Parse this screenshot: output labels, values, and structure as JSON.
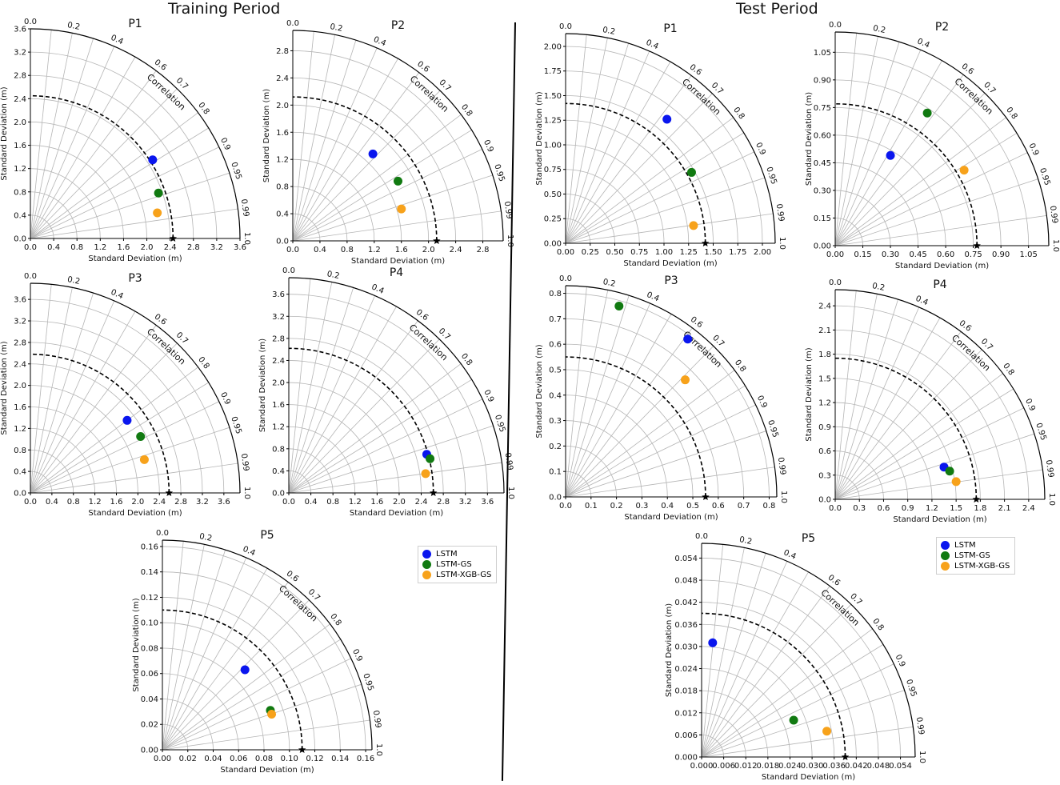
{
  "titles": {
    "training": "Training Period",
    "test": "Test Period"
  },
  "axis_label": "Standard Deviation (m)",
  "correlation_label": "Correlation",
  "correlation_ticks": [
    "0.0",
    "0.2",
    "0.4",
    "0.6",
    "0.7",
    "0.8",
    "0.9",
    "0.95",
    "0.99",
    "1.0"
  ],
  "legend": {
    "items": [
      {
        "label": "LSTM",
        "color": "#0a16ee"
      },
      {
        "label": "LSTM-GS",
        "color": "#117a11"
      },
      {
        "label": "LSTM-XGB-GS",
        "color": "#f7a21b"
      }
    ]
  },
  "chart_data": [
    {
      "type": "taylor",
      "period": "Training Period",
      "title": "P1",
      "ticks": [
        "0.0",
        "0.4",
        "0.8",
        "1.2",
        "1.6",
        "2.0",
        "2.4",
        "2.8",
        "3.2",
        "3.6"
      ],
      "max": 3.6,
      "ref": 2.45,
      "points": [
        {
          "model": "LSTM",
          "x": 2.1,
          "y": 1.35
        },
        {
          "model": "LSTM-GS",
          "x": 2.2,
          "y": 0.78
        },
        {
          "model": "LSTM-XGB-GS",
          "x": 2.18,
          "y": 0.44
        }
      ]
    },
    {
      "type": "taylor",
      "period": "Training Period",
      "title": "P2",
      "ticks": [
        "0.0",
        "0.4",
        "0.8",
        "1.2",
        "1.6",
        "2.0",
        "2.4",
        "2.8"
      ],
      "max": 3.1,
      "ref": 2.12,
      "points": [
        {
          "model": "LSTM",
          "x": 1.18,
          "y": 1.28
        },
        {
          "model": "LSTM-GS",
          "x": 1.55,
          "y": 0.88
        },
        {
          "model": "LSTM-XGB-GS",
          "x": 1.6,
          "y": 0.47
        }
      ]
    },
    {
      "type": "taylor",
      "period": "Training Period",
      "title": "P3",
      "ticks": [
        "0.0",
        "0.4",
        "0.8",
        "1.2",
        "1.6",
        "2.0",
        "2.4",
        "2.8",
        "3.2",
        "3.6"
      ],
      "max": 3.9,
      "ref": 2.58,
      "points": [
        {
          "model": "LSTM",
          "x": 1.8,
          "y": 1.35
        },
        {
          "model": "LSTM-GS",
          "x": 2.05,
          "y": 1.05
        },
        {
          "model": "LSTM-XGB-GS",
          "x": 2.12,
          "y": 0.62
        }
      ]
    },
    {
      "type": "taylor",
      "period": "Training Period",
      "title": "P4",
      "ticks": [
        "0.0",
        "0.4",
        "0.8",
        "1.2",
        "1.6",
        "2.0",
        "2.4",
        "2.8",
        "3.2",
        "3.6"
      ],
      "max": 3.9,
      "ref": 2.62,
      "points": [
        {
          "model": "LSTM",
          "x": 2.5,
          "y": 0.7
        },
        {
          "model": "LSTM-GS",
          "x": 2.56,
          "y": 0.62
        },
        {
          "model": "LSTM-XGB-GS",
          "x": 2.48,
          "y": 0.35
        }
      ]
    },
    {
      "type": "taylor",
      "period": "Training Period",
      "title": "P5",
      "ticks": [
        "0.00",
        "0.02",
        "0.04",
        "0.06",
        "0.08",
        "0.10",
        "0.12",
        "0.14",
        "0.16"
      ],
      "max": 0.165,
      "ref": 0.11,
      "points": [
        {
          "model": "LSTM",
          "x": 0.065,
          "y": 0.063
        },
        {
          "model": "LSTM-GS",
          "x": 0.085,
          "y": 0.031
        },
        {
          "model": "LSTM-XGB-GS",
          "x": 0.086,
          "y": 0.028
        }
      ]
    },
    {
      "type": "taylor",
      "period": "Test Period",
      "title": "P1",
      "ticks": [
        "0.00",
        "0.25",
        "0.50",
        "0.75",
        "1.00",
        "1.25",
        "1.50",
        "1.75",
        "2.00"
      ],
      "max": 2.13,
      "ref": 1.42,
      "points": [
        {
          "model": "LSTM",
          "x": 1.03,
          "y": 1.26
        },
        {
          "model": "LSTM-GS",
          "x": 1.28,
          "y": 0.72
        },
        {
          "model": "LSTM-XGB-GS",
          "x": 1.3,
          "y": 0.18
        }
      ]
    },
    {
      "type": "taylor",
      "period": "Test Period",
      "title": "P2",
      "ticks": [
        "0.00",
        "0.15",
        "0.30",
        "0.45",
        "0.60",
        "0.75",
        "0.90",
        "1.05"
      ],
      "max": 1.16,
      "ref": 0.77,
      "points": [
        {
          "model": "LSTM",
          "x": 0.3,
          "y": 0.49
        },
        {
          "model": "LSTM-GS",
          "x": 0.5,
          "y": 0.72
        },
        {
          "model": "LSTM-XGB-GS",
          "x": 0.7,
          "y": 0.41
        }
      ]
    },
    {
      "type": "taylor",
      "period": "Test Period",
      "title": "P3",
      "ticks": [
        "0.0",
        "0.1",
        "0.2",
        "0.3",
        "0.4",
        "0.5",
        "0.6",
        "0.7",
        "0.8"
      ],
      "max": 0.83,
      "ref": 0.55,
      "points": [
        {
          "model": "LSTM",
          "x": 0.48,
          "y": 0.62
        },
        {
          "model": "LSTM-GS",
          "x": 0.21,
          "y": 0.75
        },
        {
          "model": "LSTM-XGB-GS",
          "x": 0.47,
          "y": 0.46
        }
      ]
    },
    {
      "type": "taylor",
      "period": "Test Period",
      "title": "P4",
      "ticks": [
        "0.0",
        "0.3",
        "0.6",
        "0.9",
        "1.2",
        "1.5",
        "1.8",
        "2.1",
        "2.4"
      ],
      "max": 2.6,
      "ref": 1.75,
      "points": [
        {
          "model": "LSTM",
          "x": 1.35,
          "y": 0.4
        },
        {
          "model": "LSTM-GS",
          "x": 1.42,
          "y": 0.35
        },
        {
          "model": "LSTM-XGB-GS",
          "x": 1.5,
          "y": 0.22
        }
      ]
    },
    {
      "type": "taylor",
      "period": "Test Period",
      "title": "P5",
      "ticks": [
        "0.000",
        "0.006",
        "0.012",
        "0.018",
        "0.024",
        "0.030",
        "0.036",
        "0.042",
        "0.048",
        "0.054"
      ],
      "max": 0.058,
      "ref": 0.039,
      "points": [
        {
          "model": "LSTM",
          "x": 0.003,
          "y": 0.031
        },
        {
          "model": "LSTM-GS",
          "x": 0.025,
          "y": 0.01
        },
        {
          "model": "LSTM-XGB-GS",
          "x": 0.034,
          "y": 0.007
        }
      ]
    }
  ]
}
